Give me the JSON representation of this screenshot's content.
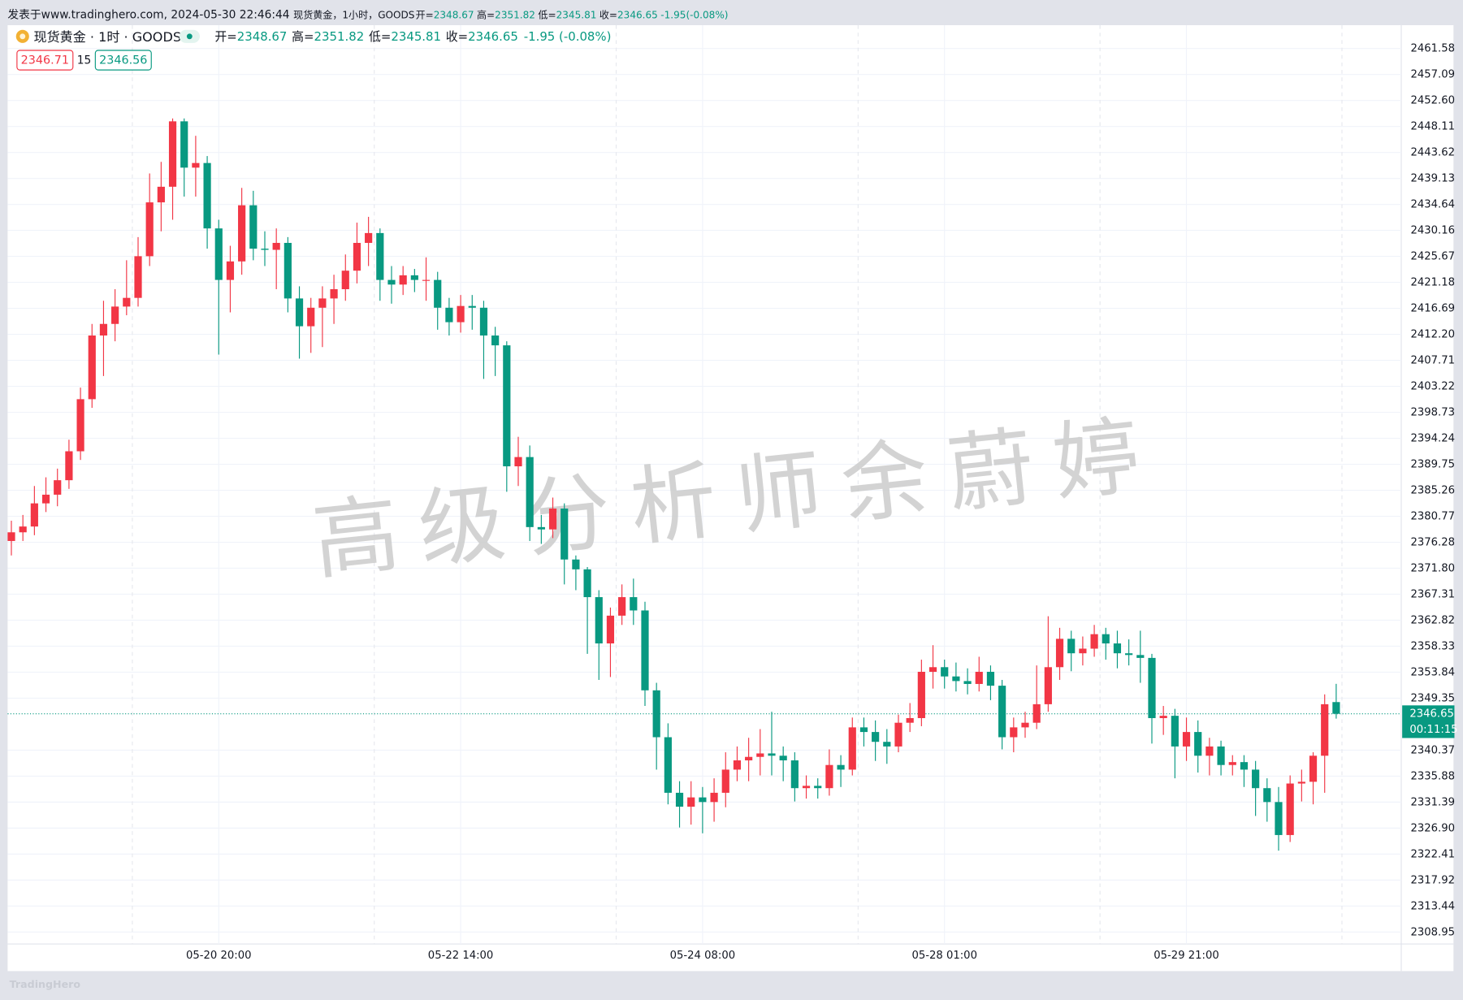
{
  "header": {
    "published": "发表于www.tradinghero.com, 2024-05-30 22:46:44",
    "info": "现货黄金，1小时，GOODS",
    "labels": [
      "开=",
      "高=",
      "低=",
      "收="
    ],
    "change": "-1.95(-0.08%)"
  },
  "chart_data": {
    "type": "candlestick",
    "symbol": "现货黄金 · 1时 · GOODS",
    "change": "-1.95 (-0.08%)",
    "bid": 2346.71,
    "spread": 15,
    "ask": 2346.56,
    "countdown": "00:11:15",
    "watermark": "高级分析师余蔚婷",
    "footer": "TradingHero",
    "colors": {
      "up": "#f23645",
      "down": "#089981"
    },
    "grid": true,
    "ylim": [
      2306.87,
      2465.61
    ],
    "yticks": [
      2308.95,
      2313.44,
      2317.92,
      2322.41,
      {
        "value": 2326.9,
        "label": "2326.90"
      },
      2331.39,
      2335.88,
      2340.37,
      2349.35,
      2353.84,
      2358.33,
      2362.82,
      2367.31,
      {
        "value": 2371.8,
        "label": "2371.80"
      },
      2376.28,
      2380.77,
      2385.26,
      2389.75,
      2394.24,
      2398.73,
      2403.22,
      2407.71,
      {
        "value": 2412.2,
        "label": "2412.20"
      },
      2416.69,
      2421.18,
      2425.67,
      2430.16,
      2434.64,
      2439.13,
      2443.62,
      2448.11,
      {
        "value": 2452.6,
        "label": "2452.60"
      },
      2457.09,
      2461.58
    ],
    "categories": [
      null,
      null,
      null,
      null,
      null,
      null,
      null,
      null,
      null,
      null,
      null,
      null,
      null,
      null,
      null,
      null,
      null,
      null,
      "05-20 20:00",
      null,
      null,
      null,
      null,
      null,
      null,
      null,
      null,
      null,
      null,
      null,
      null,
      null,
      null,
      null,
      null,
      null,
      null,
      null,
      null,
      "05-22 14:00",
      null,
      null,
      null,
      null,
      null,
      null,
      null,
      null,
      null,
      null,
      null,
      null,
      null,
      null,
      null,
      null,
      null,
      null,
      null,
      null,
      "05-24 08:00",
      null,
      null,
      null,
      null,
      null,
      null,
      null,
      null,
      null,
      null,
      null,
      null,
      null,
      null,
      null,
      null,
      null,
      null,
      null,
      null,
      "05-28 01:00",
      null,
      null,
      null,
      null,
      null,
      null,
      null,
      null,
      null,
      null,
      null,
      null,
      null,
      null,
      null,
      null,
      null,
      null,
      null,
      null,
      "05-29 21:00",
      null,
      null,
      null,
      null,
      null,
      null,
      null,
      null,
      null,
      null,
      null,
      null,
      null
    ],
    "candles": [
      [
        2376.5,
        2380.0,
        2374.0,
        2378.0
      ],
      [
        2378.0,
        2381.0,
        2376.5,
        2379.0
      ],
      [
        2379.0,
        2386.0,
        2377.5,
        2383.0
      ],
      [
        2383.0,
        2387.5,
        2381.5,
        2384.5
      ],
      [
        2384.5,
        2389.0,
        2382.5,
        2387.0
      ],
      [
        2387.0,
        2394.0,
        2385.5,
        2392.0
      ],
      [
        2392.0,
        2403.0,
        2390.5,
        2401.0
      ],
      [
        2401.0,
        2414.0,
        2399.5,
        2412.0
      ],
      [
        2412.0,
        2418.0,
        2405.0,
        2414.0
      ],
      [
        2414.0,
        2420.0,
        2411.0,
        2417.0
      ],
      [
        2417.0,
        2425.0,
        2415.5,
        2418.5
      ],
      [
        2418.5,
        2429.0,
        2417.0,
        2425.7
      ],
      [
        2425.7,
        2440.0,
        2424.0,
        2435.0
      ],
      [
        2435.0,
        2442.0,
        2430.0,
        2437.7
      ],
      [
        2437.7,
        2449.5,
        2432.0,
        2449.0
      ],
      [
        2449.0,
        2449.5,
        2436.0,
        2441.0
      ],
      [
        2441.0,
        2446.5,
        2436.0,
        2441.8
      ],
      [
        2441.8,
        2443.0,
        2427.0,
        2430.5
      ],
      [
        2430.5,
        2432.0,
        2408.7,
        2421.6
      ],
      [
        2421.6,
        2427.5,
        2416.0,
        2424.8
      ],
      [
        2424.8,
        2437.5,
        2422.5,
        2434.5
      ],
      [
        2434.5,
        2437.0,
        2425.0,
        2427.0
      ],
      [
        2427.0,
        2430.0,
        2424.0,
        2426.8
      ],
      [
        2426.8,
        2430.5,
        2420.0,
        2428.0
      ],
      [
        2428.0,
        2429.0,
        2416.0,
        2418.4
      ],
      [
        2418.4,
        2420.5,
        2408.0,
        2413.6
      ],
      [
        2413.6,
        2418.5,
        2409.0,
        2416.8
      ],
      [
        2416.8,
        2420.5,
        2410.0,
        2418.4
      ],
      [
        2418.4,
        2422.5,
        2414.0,
        2420.0
      ],
      [
        2420.0,
        2426.0,
        2418.0,
        2423.2
      ],
      [
        2423.2,
        2431.5,
        2421.0,
        2428.0
      ],
      [
        2428.0,
        2432.5,
        2424.0,
        2429.7
      ],
      [
        2429.7,
        2430.5,
        2418.0,
        2421.6
      ],
      [
        2421.6,
        2424.0,
        2417.5,
        2420.8
      ],
      [
        2420.8,
        2424.0,
        2419.0,
        2422.4
      ],
      [
        2422.4,
        2423.5,
        2419.5,
        2421.6
      ],
      [
        2421.6,
        2425.5,
        2418.0,
        2421.6
      ],
      [
        2421.6,
        2423.0,
        2413.0,
        2416.8
      ],
      [
        2416.8,
        2418.5,
        2412.0,
        2414.3
      ],
      [
        2414.3,
        2419.0,
        2412.5,
        2417.1
      ],
      [
        2417.1,
        2419.0,
        2413.0,
        2416.8
      ],
      [
        2416.8,
        2418.0,
        2404.5,
        2412.0
      ],
      [
        2412.0,
        2413.5,
        2405.0,
        2410.3
      ],
      [
        2410.3,
        2411.0,
        2385.0,
        2389.4
      ],
      [
        2389.4,
        2394.5,
        2386.0,
        2391.0
      ],
      [
        2391.0,
        2393.0,
        2376.5,
        2378.9
      ],
      [
        2378.9,
        2381.0,
        2376.0,
        2378.5
      ],
      [
        2378.5,
        2384.0,
        2377.0,
        2382.1
      ],
      [
        2382.1,
        2383.0,
        2369.0,
        2373.3
      ],
      [
        2373.3,
        2374.0,
        2368.0,
        2371.6
      ],
      [
        2371.6,
        2372.0,
        2357.0,
        2366.8
      ],
      [
        2366.8,
        2368.0,
        2352.5,
        2358.8
      ],
      [
        2358.8,
        2365.0,
        2353.0,
        2363.6
      ],
      [
        2363.6,
        2369.0,
        2362.0,
        2366.8
      ],
      [
        2366.8,
        2370.0,
        2362.0,
        2364.5
      ],
      [
        2364.5,
        2366.0,
        2348.0,
        2350.7
      ],
      [
        2350.7,
        2352.0,
        2337.0,
        2342.6
      ],
      [
        2342.6,
        2345.0,
        2331.0,
        2333.0
      ],
      [
        2333.0,
        2335.0,
        2327.0,
        2330.6
      ],
      [
        2330.6,
        2335.0,
        2327.5,
        2332.2
      ],
      [
        2332.2,
        2334.0,
        2326.0,
        2331.4
      ],
      [
        2331.4,
        2335.5,
        2328.0,
        2333.0
      ],
      [
        2333.0,
        2340.0,
        2330.5,
        2337.0
      ],
      [
        2337.0,
        2341.0,
        2335.0,
        2338.6
      ],
      [
        2338.6,
        2342.5,
        2335.0,
        2339.2
      ],
      [
        2339.2,
        2344.0,
        2336.0,
        2339.8
      ],
      [
        2339.8,
        2347.0,
        2336.0,
        2339.4
      ],
      [
        2339.4,
        2341.0,
        2335.0,
        2338.6
      ],
      [
        2338.6,
        2340.0,
        2331.5,
        2333.8
      ],
      [
        2333.8,
        2336.0,
        2332.0,
        2334.2
      ],
      [
        2334.2,
        2335.5,
        2332.0,
        2333.8
      ],
      [
        2333.8,
        2340.5,
        2332.5,
        2337.8
      ],
      [
        2337.8,
        2339.5,
        2334.0,
        2337.0
      ],
      [
        2337.0,
        2346.0,
        2336.0,
        2344.3
      ],
      [
        2344.3,
        2346.0,
        2341.0,
        2343.5
      ],
      [
        2343.5,
        2345.5,
        2338.5,
        2341.8
      ],
      [
        2341.8,
        2344.0,
        2338.0,
        2341.0
      ],
      [
        2341.0,
        2346.5,
        2340.0,
        2345.1
      ],
      [
        2345.1,
        2348.5,
        2343.5,
        2345.9
      ],
      [
        2345.9,
        2356.0,
        2344.5,
        2353.9
      ],
      [
        2353.9,
        2358.5,
        2351.0,
        2354.7
      ],
      [
        2354.7,
        2356.0,
        2351.0,
        2353.1
      ],
      [
        2353.1,
        2355.5,
        2350.5,
        2352.3
      ],
      [
        2352.3,
        2354.5,
        2350.0,
        2351.8
      ],
      [
        2351.8,
        2356.5,
        2350.5,
        2353.9
      ],
      [
        2353.9,
        2355.0,
        2349.0,
        2351.5
      ],
      [
        2351.5,
        2352.5,
        2340.5,
        2342.6
      ],
      [
        2342.6,
        2346.0,
        2340.0,
        2344.3
      ],
      [
        2344.3,
        2347.0,
        2342.5,
        2345.1
      ],
      [
        2345.1,
        2355.0,
        2344.0,
        2348.3
      ],
      [
        2348.3,
        2363.5,
        2347.0,
        2354.7
      ],
      [
        2354.7,
        2361.5,
        2352.5,
        2359.6
      ],
      [
        2359.6,
        2361.0,
        2354.0,
        2357.1
      ],
      [
        2357.1,
        2360.0,
        2355.0,
        2357.9
      ],
      [
        2357.9,
        2362.0,
        2356.5,
        2360.4
      ],
      [
        2360.4,
        2361.5,
        2356.0,
        2358.8
      ],
      [
        2358.8,
        2361.0,
        2354.5,
        2357.1
      ],
      [
        2357.1,
        2359.5,
        2355.0,
        2356.8
      ],
      [
        2356.8,
        2361.0,
        2352.0,
        2356.3
      ],
      [
        2356.3,
        2357.0,
        2341.5,
        2345.9
      ],
      [
        2345.9,
        2348.0,
        2343.0,
        2346.3
      ],
      [
        2346.3,
        2347.5,
        2335.5,
        2341.0
      ],
      [
        2341.0,
        2346.0,
        2338.5,
        2343.5
      ],
      [
        2343.5,
        2345.5,
        2336.5,
        2339.4
      ],
      [
        2339.4,
        2342.5,
        2336.0,
        2341.0
      ],
      [
        2341.0,
        2342.0,
        2336.0,
        2337.8
      ],
      [
        2337.8,
        2339.5,
        2336.0,
        2338.3
      ],
      [
        2338.3,
        2339.5,
        2334.0,
        2337.0
      ],
      [
        2337.0,
        2338.5,
        2329.0,
        2333.8
      ],
      [
        2333.8,
        2335.5,
        2328.0,
        2331.4
      ],
      [
        2331.4,
        2334.0,
        2323.0,
        2325.7
      ],
      [
        2325.7,
        2336.0,
        2324.5,
        2334.6
      ],
      [
        2334.6,
        2337.0,
        2331.5,
        2334.9
      ],
      [
        2334.9,
        2340.0,
        2331.0,
        2339.4
      ],
      [
        2339.4,
        2350.0,
        2333.0,
        2348.3
      ],
      [
        2348.67,
        2351.82,
        2345.81,
        2346.65
      ]
    ]
  }
}
